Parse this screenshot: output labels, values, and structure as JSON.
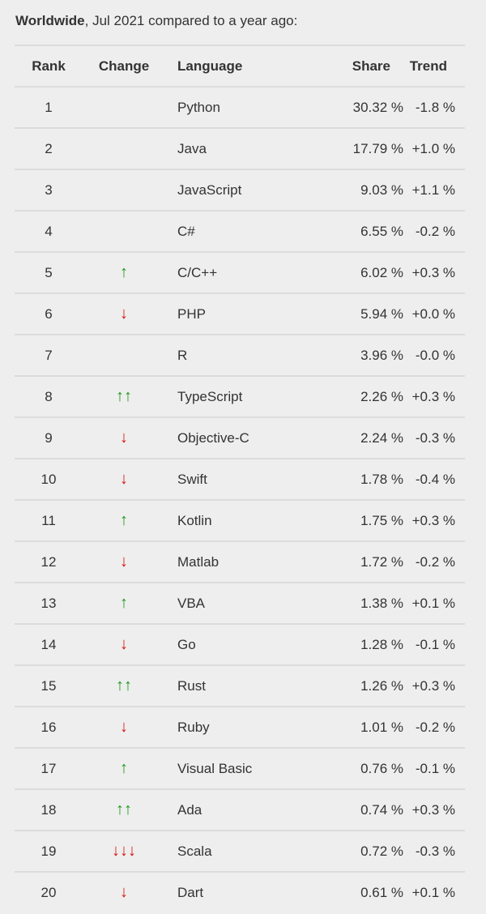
{
  "caption": {
    "bold": "Worldwide",
    "rest": ", Jul 2021 compared to a year ago:"
  },
  "headers": {
    "rank": "Rank",
    "change": "Change",
    "language": "Language",
    "share": "Share",
    "trend": "Trend"
  },
  "colors": {
    "up": "#1a9a1a",
    "down": "#d81414",
    "background": "#eeeeee",
    "divider": "#dcdcdc"
  },
  "rows": [
    {
      "rank": "1",
      "change": "",
      "language": "Python",
      "share": "30.32 %",
      "trend": "-1.8 %"
    },
    {
      "rank": "2",
      "change": "",
      "language": "Java",
      "share": "17.79 %",
      "trend": "+1.0 %"
    },
    {
      "rank": "3",
      "change": "",
      "language": "JavaScript",
      "share": "9.03 %",
      "trend": "+1.1 %"
    },
    {
      "rank": "4",
      "change": "",
      "language": "C#",
      "share": "6.55 %",
      "trend": "-0.2 %"
    },
    {
      "rank": "5",
      "change": "up",
      "language": "C/C++",
      "share": "6.02 %",
      "trend": "+0.3 %"
    },
    {
      "rank": "6",
      "change": "down",
      "language": "PHP",
      "share": "5.94 %",
      "trend": "+0.0 %"
    },
    {
      "rank": "7",
      "change": "",
      "language": "R",
      "share": "3.96 %",
      "trend": "-0.0 %"
    },
    {
      "rank": "8",
      "change": "up2",
      "language": "TypeScript",
      "share": "2.26 %",
      "trend": "+0.3 %"
    },
    {
      "rank": "9",
      "change": "down",
      "language": "Objective-C",
      "share": "2.24 %",
      "trend": "-0.3 %"
    },
    {
      "rank": "10",
      "change": "down",
      "language": "Swift",
      "share": "1.78 %",
      "trend": "-0.4 %"
    },
    {
      "rank": "11",
      "change": "up",
      "language": "Kotlin",
      "share": "1.75 %",
      "trend": "+0.3 %"
    },
    {
      "rank": "12",
      "change": "down",
      "language": "Matlab",
      "share": "1.72 %",
      "trend": "-0.2 %"
    },
    {
      "rank": "13",
      "change": "up",
      "language": "VBA",
      "share": "1.38 %",
      "trend": "+0.1 %"
    },
    {
      "rank": "14",
      "change": "down",
      "language": "Go",
      "share": "1.28 %",
      "trend": "-0.1 %"
    },
    {
      "rank": "15",
      "change": "up2",
      "language": "Rust",
      "share": "1.26 %",
      "trend": "+0.3 %"
    },
    {
      "rank": "16",
      "change": "down",
      "language": "Ruby",
      "share": "1.01 %",
      "trend": "-0.2 %"
    },
    {
      "rank": "17",
      "change": "up",
      "language": "Visual Basic",
      "share": "0.76 %",
      "trend": "-0.1 %"
    },
    {
      "rank": "18",
      "change": "up2",
      "language": "Ada",
      "share": "0.74 %",
      "trend": "+0.3 %"
    },
    {
      "rank": "19",
      "change": "down3",
      "language": "Scala",
      "share": "0.72 %",
      "trend": "-0.3 %"
    },
    {
      "rank": "20",
      "change": "down",
      "language": "Dart",
      "share": "0.61 %",
      "trend": "+0.1 %"
    }
  ]
}
